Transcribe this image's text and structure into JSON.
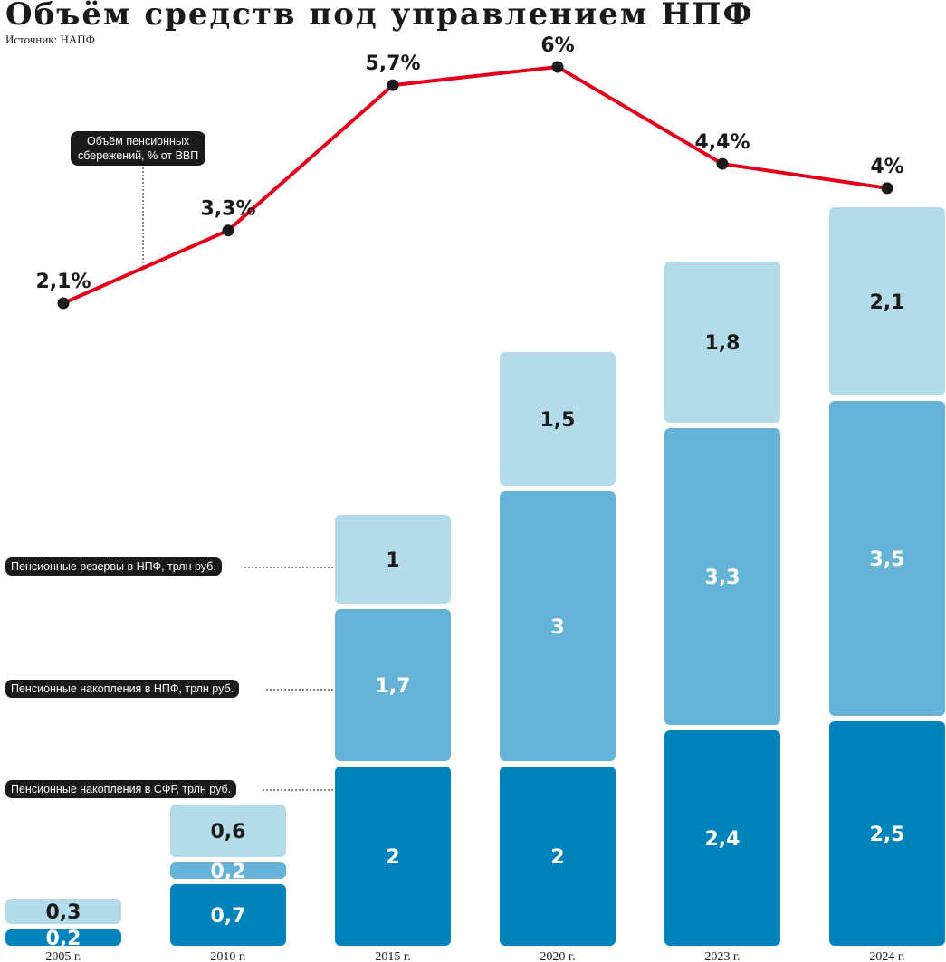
{
  "header": {
    "title": "Объём средств под управлением НПФ",
    "source": "Источник: НАПФ"
  },
  "legend": {
    "reserves": "Пенсионные резервы в НПФ, трлн руб.",
    "savings_npf": "Пенсионные накопления в НПФ, трлн руб.",
    "savings_sfr": "Пенсионные накопления в СФР, трлн руб.",
    "line_line1": "Объём пенсионных",
    "line_line2": "сбережений, % от ВВП"
  },
  "colors": {
    "sfr": "#0083bb",
    "npf": "#65b3d6",
    "reserves": "#b3dbea",
    "line": "#e2001a",
    "dark": "#1a1a1a"
  },
  "chart_data": {
    "type": "bar",
    "stacked": true,
    "categories": [
      "2005 г.",
      "2010 г.",
      "2015 г.",
      "2020 г.",
      "2023 г.",
      "2024 г."
    ],
    "series": [
      {
        "name": "Пенсионные накопления в СФР, трлн руб.",
        "values": [
          0.2,
          0.7,
          2,
          2,
          2.4,
          2.5
        ],
        "labels": [
          "0,2",
          "0,7",
          "2",
          "2",
          "2,4",
          "2,5"
        ]
      },
      {
        "name": "Пенсионные накопления в НПФ, трлн руб.",
        "values": [
          0,
          0.2,
          1.7,
          3,
          3.3,
          3.5
        ],
        "labels": [
          "",
          "0,2",
          "1,7",
          "3",
          "3,3",
          "3,5"
        ]
      },
      {
        "name": "Пенсионные резервы в НПФ, трлн руб.",
        "values": [
          0.3,
          0.6,
          1,
          1.5,
          1.8,
          2.1
        ],
        "labels": [
          "0,3",
          "0,6",
          "1",
          "1,5",
          "1,8",
          "2,1"
        ]
      }
    ],
    "line_series": {
      "name": "Объём пенсионных сбережений, % от ВВП",
      "values": [
        2.1,
        3.3,
        5.7,
        6,
        4.4,
        4
      ],
      "labels": [
        "2,1%",
        "3,3%",
        "5,7%",
        "6%",
        "4,4%",
        "4%"
      ]
    }
  }
}
